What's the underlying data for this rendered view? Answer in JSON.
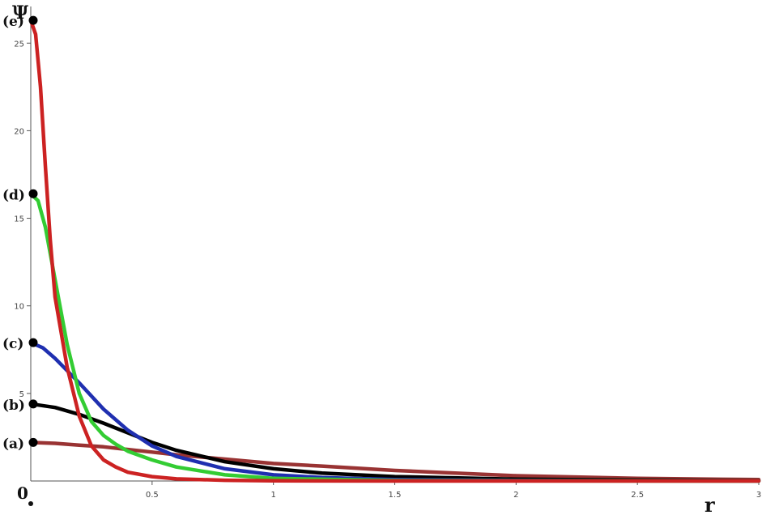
{
  "chart_data": {
    "type": "line",
    "xlabel": "r",
    "ylabel": "Ψ",
    "origin_label": "0",
    "xlim": [
      0,
      3
    ],
    "ylim": [
      0,
      27
    ],
    "x_ticks": [
      0.5,
      1,
      1.5,
      2,
      2.5,
      3
    ],
    "x_tick_labels": [
      "0.5",
      "1",
      "1.5",
      "2",
      "2.5",
      "3"
    ],
    "y_ticks": [
      5,
      10,
      15,
      20,
      25
    ],
    "y_tick_labels": [
      "5",
      "10",
      "15",
      "20",
      "25"
    ],
    "grid": false,
    "series": [
      {
        "name": "(a)",
        "color": "#993333",
        "y0": 2.2,
        "x": [
          0,
          0.1,
          0.2,
          0.3,
          0.4,
          0.5,
          0.6,
          0.8,
          1.0,
          1.2,
          1.5,
          2.0,
          2.5,
          3.0
        ],
        "y": [
          2.2,
          2.15,
          2.05,
          1.95,
          1.8,
          1.65,
          1.5,
          1.25,
          1.0,
          0.85,
          0.6,
          0.3,
          0.15,
          0.08
        ]
      },
      {
        "name": "(b)",
        "color": "#000000",
        "y0": 4.4,
        "x": [
          0,
          0.1,
          0.2,
          0.3,
          0.4,
          0.5,
          0.6,
          0.8,
          1.0,
          1.2,
          1.5,
          2.0,
          2.5,
          3.0
        ],
        "y": [
          4.4,
          4.2,
          3.8,
          3.3,
          2.75,
          2.2,
          1.75,
          1.1,
          0.7,
          0.45,
          0.25,
          0.1,
          0.05,
          0.02
        ]
      },
      {
        "name": "(c)",
        "color": "#1f2fb0",
        "y0": 7.9,
        "x": [
          0,
          0.05,
          0.1,
          0.2,
          0.3,
          0.4,
          0.5,
          0.6,
          0.8,
          1.0,
          1.2,
          1.5,
          2.0,
          2.5,
          3.0
        ],
        "y": [
          7.9,
          7.6,
          7.0,
          5.6,
          4.1,
          2.9,
          2.0,
          1.4,
          0.7,
          0.35,
          0.2,
          0.08,
          0.03,
          0.01,
          0.0
        ]
      },
      {
        "name": "(d)",
        "color": "#33cc33",
        "y0": 16.4,
        "x": [
          0,
          0.03,
          0.06,
          0.1,
          0.15,
          0.2,
          0.25,
          0.3,
          0.35,
          0.4,
          0.5,
          0.6,
          0.8,
          1.0,
          1.5,
          2.0,
          3.0
        ],
        "y": [
          16.4,
          16.0,
          14.5,
          11.5,
          7.8,
          5.0,
          3.4,
          2.6,
          2.1,
          1.7,
          1.2,
          0.8,
          0.35,
          0.15,
          0.03,
          0.01,
          0.0
        ]
      },
      {
        "name": "(e)",
        "color": "#cc2222",
        "y0": 26.3,
        "x": [
          0,
          0.02,
          0.04,
          0.06,
          0.08,
          0.1,
          0.15,
          0.2,
          0.25,
          0.3,
          0.35,
          0.4,
          0.5,
          0.6,
          0.8,
          1.0,
          1.5,
          3.0
        ],
        "y": [
          26.3,
          25.5,
          22.5,
          18.0,
          13.8,
          10.5,
          6.5,
          3.7,
          2.0,
          1.2,
          0.8,
          0.5,
          0.25,
          0.12,
          0.04,
          0.01,
          0.0,
          0.0
        ]
      }
    ]
  }
}
